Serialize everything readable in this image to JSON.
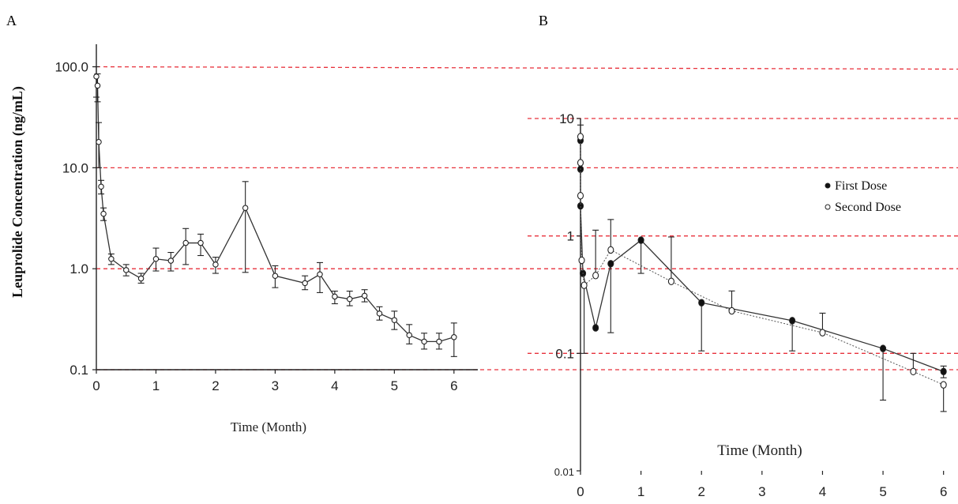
{
  "panels": {
    "a": {
      "label": "A"
    },
    "b": {
      "label": "B"
    }
  },
  "reference_line_color": "#e8323c",
  "chart_data": [
    {
      "type": "line",
      "panel": "A",
      "xlabel": "Time (Month)",
      "ylabel": "Leuprolide Concentration (ng/mL)",
      "yscale": "log",
      "xlim": [
        0,
        6.4
      ],
      "ylim": [
        0.1,
        150
      ],
      "x_ticks": [
        "0",
        "1",
        "2",
        "3",
        "4",
        "5",
        "6"
      ],
      "x_tick_values": [
        0,
        1,
        2,
        3,
        4,
        5,
        6
      ],
      "y_ticks": [
        "0.1",
        "1.0",
        "10.0",
        "100.0"
      ],
      "y_tick_values": [
        0.1,
        1,
        10,
        100
      ],
      "reference_lines": [
        0.1,
        1,
        10,
        100
      ],
      "grid": false,
      "series": [
        {
          "marker": "open-circle",
          "x": [
            0,
            0.02,
            0.04,
            0.08,
            0.12,
            0.25,
            0.5,
            0.75,
            1,
            1.25,
            1.5,
            1.75,
            2,
            2.5,
            3,
            3.5,
            3.75,
            4,
            4.25,
            4.5,
            4.75,
            5,
            5.25,
            5.5,
            5.75,
            6
          ],
          "y": [
            80,
            65,
            18,
            6.5,
            3.5,
            1.25,
            0.97,
            0.8,
            1.25,
            1.2,
            1.8,
            1.8,
            1.1,
            4.0,
            0.85,
            0.72,
            0.88,
            0.53,
            0.5,
            0.54,
            0.36,
            0.31,
            0.22,
            0.19,
            0.19,
            0.21
          ],
          "err_low": [
            50,
            45,
            10,
            5.5,
            3.0,
            1.1,
            0.85,
            0.72,
            0.95,
            0.95,
            1.1,
            1.35,
            0.9,
            0.92,
            0.65,
            0.62,
            0.58,
            0.45,
            0.43,
            0.47,
            0.31,
            0.25,
            0.18,
            0.16,
            0.16,
            0.135
          ],
          "err_high": [
            100,
            85,
            28,
            7.5,
            4.0,
            1.4,
            1.1,
            0.9,
            1.6,
            1.45,
            2.5,
            2.2,
            1.3,
            7.3,
            1.07,
            0.85,
            1.15,
            0.6,
            0.6,
            0.62,
            0.42,
            0.38,
            0.28,
            0.23,
            0.23,
            0.29
          ]
        }
      ]
    },
    {
      "type": "line",
      "panel": "B",
      "xlabel": "Time (Month)",
      "ylabel": "",
      "yscale": "log",
      "xlim": [
        0,
        6.2
      ],
      "ylim": [
        0.01,
        10
      ],
      "x_ticks": [
        "0",
        "1",
        "2",
        "3",
        "4",
        "5",
        "6"
      ],
      "x_tick_values": [
        0,
        1,
        2,
        3,
        4,
        5,
        6
      ],
      "y_ticks": [
        "0.01",
        "0.1",
        "1",
        "10"
      ],
      "y_tick_values": [
        0.01,
        0.1,
        1,
        10
      ],
      "reference_lines": [
        0.1,
        1,
        10
      ],
      "grid": false,
      "legend_position": "top-right",
      "series": [
        {
          "name": "First Dose",
          "marker": "filled-circle",
          "line": "solid",
          "x": [
            0,
            0,
            0,
            0.04,
            0.25,
            0.5,
            1,
            2,
            3.5,
            5,
            6
          ],
          "y": [
            6.5,
            3.7,
            1.8,
            0.48,
            0.165,
            0.58,
            0.92,
            0.27,
            0.19,
            0.11,
            0.07
          ],
          "err_low": [
            6.5,
            3.7,
            1.8,
            0.48,
            0.165,
            0.15,
            0.48,
            0.105,
            0.105,
            0.04,
            0.062
          ],
          "err_high": [
            6.5,
            3.7,
            1.8,
            0.48,
            0.165,
            0.58,
            0.92,
            0.27,
            0.19,
            0.11,
            0.078
          ]
        },
        {
          "name": "Second Dose",
          "marker": "open-circle",
          "line": "dotted",
          "x": [
            0,
            0,
            0,
            0.02,
            0.06,
            0.25,
            0.5,
            1.5,
            2.5,
            4,
            5.5,
            6
          ],
          "y": [
            7.0,
            4.2,
            2.2,
            0.62,
            0.38,
            0.46,
            0.76,
            0.41,
            0.23,
            0.15,
            0.07,
            0.054
          ],
          "err_low": [
            7.0,
            4.2,
            2.2,
            0.62,
            0.1,
            0.46,
            0.76,
            0.41,
            0.23,
            0.15,
            0.07,
            0.032
          ],
          "err_high": [
            8.8,
            4.2,
            2.2,
            0.62,
            0.38,
            1.12,
            1.38,
            0.98,
            0.34,
            0.22,
            0.1,
            0.054
          ]
        }
      ]
    }
  ]
}
